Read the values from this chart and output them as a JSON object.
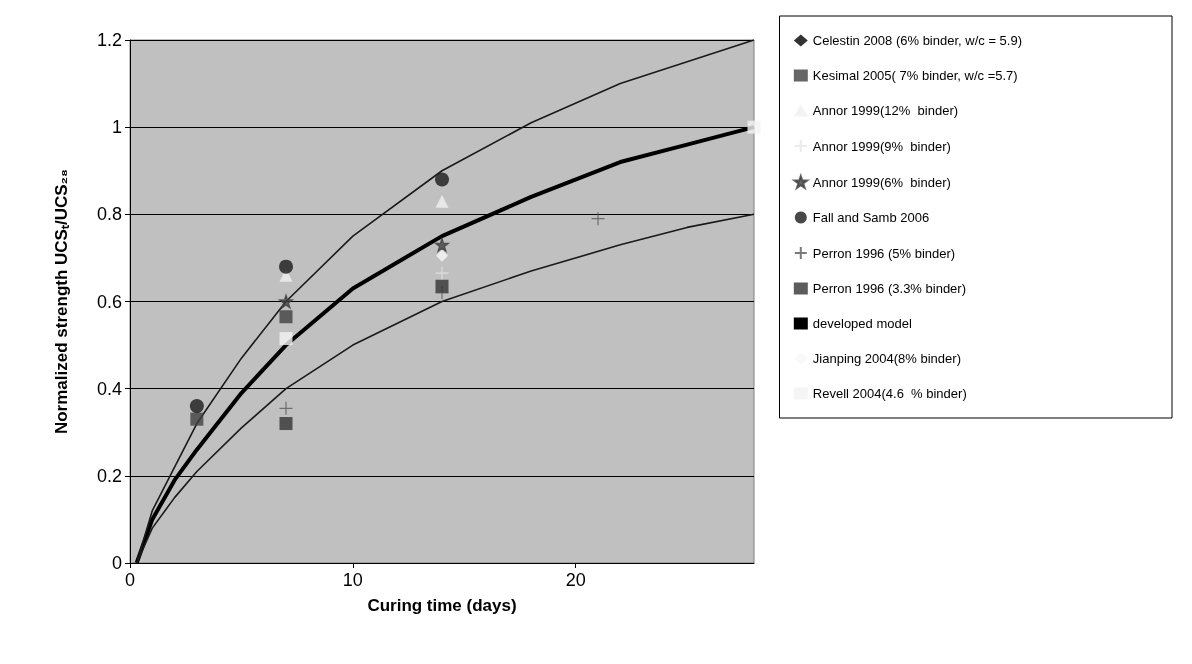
{
  "chart_data": {
    "type": "scatter",
    "xlabel": "Curing time (days)",
    "ylabel": "Normalized strength UCSₜ/UCS₂₈",
    "xlim": [
      0,
      28
    ],
    "xticks": [
      0,
      10,
      20
    ],
    "ylim": [
      0,
      1.2
    ],
    "yticks": [
      0,
      0.2,
      0.4,
      0.6,
      0.8,
      1,
      1.2
    ],
    "grid": "y",
    "legend": "right",
    "series": [
      {
        "name": "Celestin 2008 (6% binder, w/c = 5.9)",
        "color": "#000000",
        "marker": "diamond"
      },
      {
        "name": "Kesimal 2005( 7% binder, w/c =5.7)",
        "color": "#404040",
        "marker": "square",
        "x": [
          3,
          7
        ],
        "values": [
          0.33,
          0.565
        ]
      },
      {
        "name": "Annor 1999(12%  binder)",
        "color": "#f0f0f0",
        "marker": "triangle",
        "x": [
          7,
          14
        ],
        "values": [
          0.66,
          0.83
        ]
      },
      {
        "name": "Annor 1999(9%  binder)",
        "color": "#e6e6e6",
        "marker": "cross",
        "x": [
          14
        ],
        "values": [
          0.665
        ]
      },
      {
        "name": "Annor 1999(6%  binder)",
        "color": "#404040",
        "marker": "star",
        "x": [
          7,
          14
        ],
        "values": [
          0.6,
          0.73
        ]
      },
      {
        "name": "Fall and Samb 2006",
        "color": "#1a1a1a",
        "marker": "circle",
        "x": [
          3,
          7,
          14
        ],
        "values": [
          0.36,
          0.68,
          0.88
        ]
      },
      {
        "name": "Perron 1996 (5% binder)",
        "color": "#595959",
        "marker": "cross",
        "x": [
          7,
          14,
          21
        ],
        "values": [
          0.355,
          0.62,
          0.79
        ]
      },
      {
        "name": "Perron 1996 (3.3% binder)",
        "color": "#333333",
        "marker": "square",
        "x": [
          7,
          14
        ],
        "values": [
          0.32,
          0.635
        ]
      },
      {
        "name": "developed model",
        "type": "line",
        "color": "#000000",
        "marker": "none",
        "x": [
          0.3,
          1,
          2,
          3,
          5,
          7,
          10,
          14,
          18,
          22,
          25,
          28
        ],
        "values": [
          0,
          0.1,
          0.19,
          0.26,
          0.39,
          0.5,
          0.63,
          0.75,
          0.84,
          0.92,
          0.96,
          1.0
        ]
      },
      {
        "name": "Jianping 2004(8% binder)",
        "color": "#f8f8f8",
        "marker": "diamond",
        "x": [
          14
        ],
        "values": [
          0.705
        ]
      },
      {
        "name": "Revell 2004(4.6  % binder)",
        "color": "#f2f2f2",
        "marker": "square",
        "x": [
          7,
          28
        ],
        "values": [
          0.515,
          1.0
        ]
      },
      {
        "type": "line",
        "color": "#1a1a1a",
        "marker": "none",
        "x": [
          0.3,
          1,
          2,
          3,
          5,
          7,
          10,
          14,
          18,
          22,
          25,
          28
        ],
        "values": [
          0,
          0.12,
          0.22,
          0.32,
          0.47,
          0.6,
          0.75,
          0.9,
          1.01,
          1.1,
          1.15,
          1.2
        ]
      },
      {
        "type": "line",
        "color": "#1a1a1a",
        "marker": "none",
        "x": [
          0.3,
          1,
          2,
          3,
          5,
          7,
          10,
          14,
          18,
          22,
          25,
          28
        ],
        "values": [
          0,
          0.08,
          0.15,
          0.21,
          0.31,
          0.4,
          0.5,
          0.6,
          0.67,
          0.73,
          0.77,
          0.8
        ]
      }
    ]
  }
}
